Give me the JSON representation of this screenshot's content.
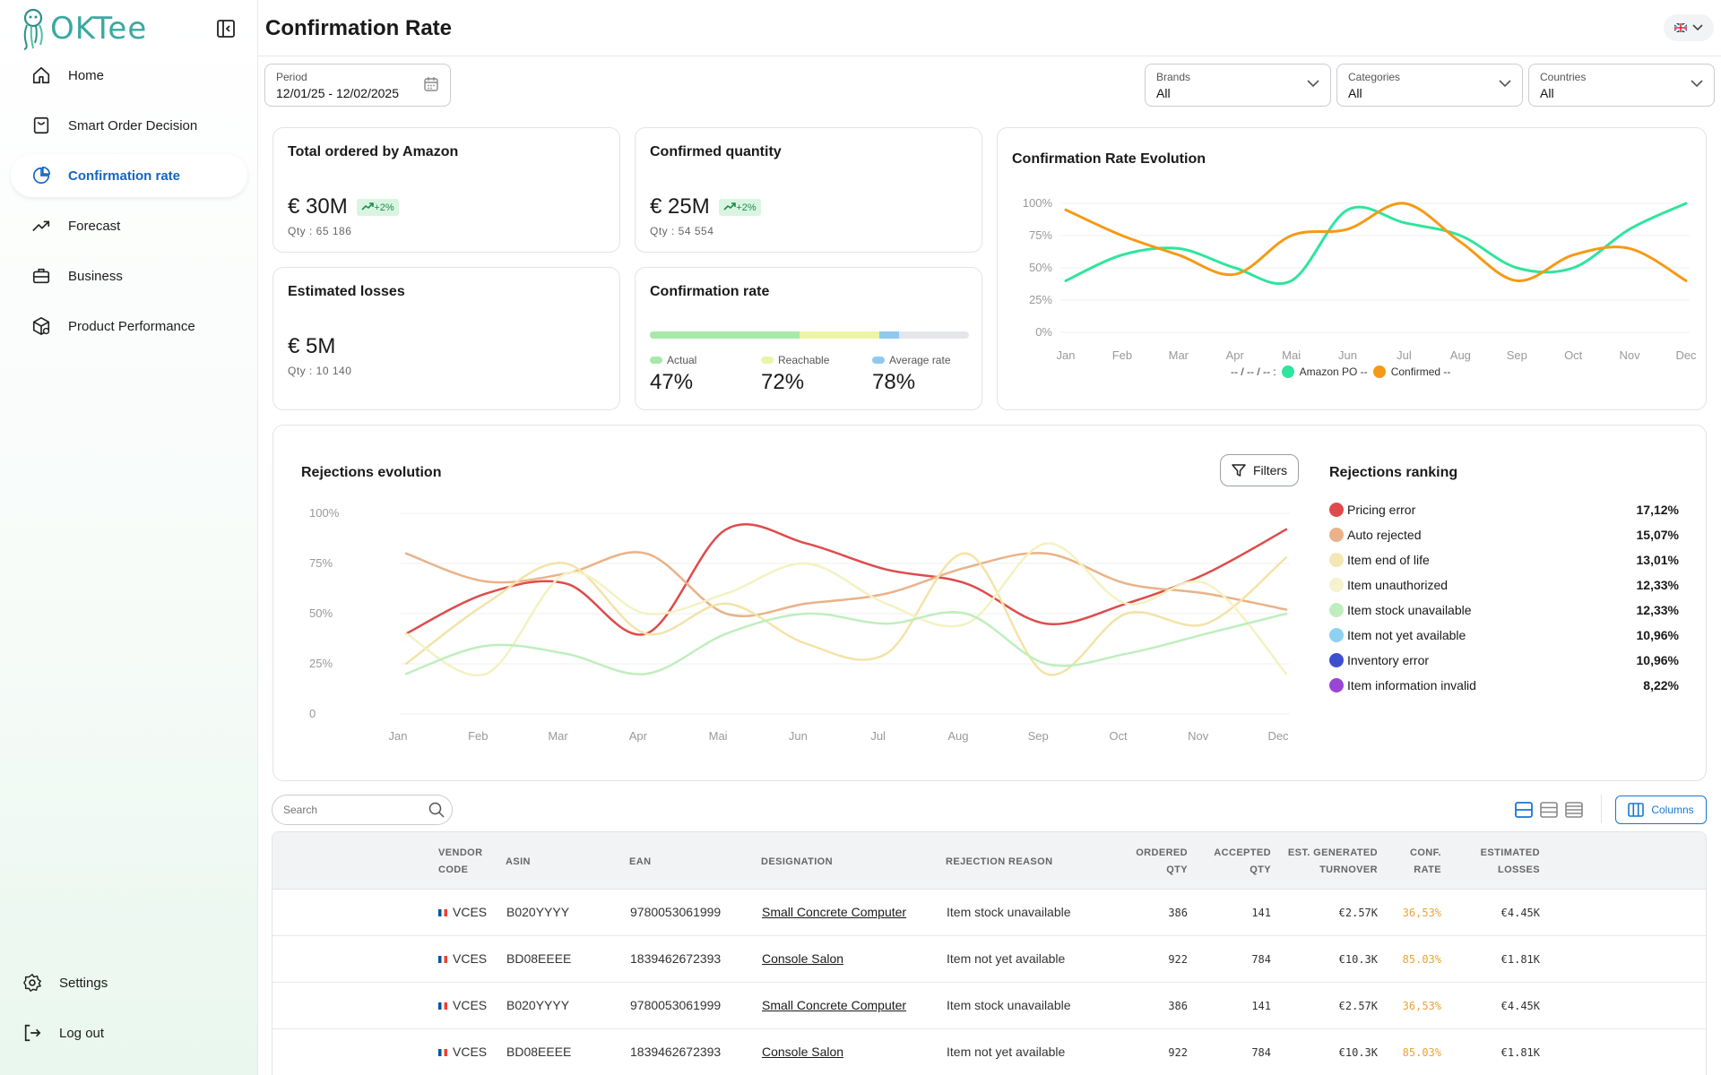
{
  "brand": {
    "name": "OKTee"
  },
  "nav": [
    {
      "label": "Home",
      "icon": "home-icon"
    },
    {
      "label": "Smart Order Decision",
      "icon": "bag-icon"
    },
    {
      "label": "Confirmation rate",
      "icon": "pie-icon"
    },
    {
      "label": "Forecast",
      "icon": "trend-icon"
    },
    {
      "label": "Business",
      "icon": "briefcase-icon"
    },
    {
      "label": "Product Performance",
      "icon": "box-icon"
    }
  ],
  "nav_bottom": [
    {
      "label": "Settings",
      "icon": "gear-icon"
    },
    {
      "label": "Log out",
      "icon": "logout-icon"
    }
  ],
  "page": {
    "title": "Confirmation Rate"
  },
  "filters": {
    "period": {
      "label": "Period",
      "value": "12/01/25 - 12/02/2025"
    },
    "brands": {
      "label": "Brands",
      "value": "All"
    },
    "categories": {
      "label": "Categories",
      "value": "All"
    },
    "countries": {
      "label": "Countries",
      "value": "All"
    }
  },
  "kpis": {
    "total_ordered": {
      "title": "Total ordered by Amazon",
      "value": "€ 30M",
      "badge": "+2%",
      "qty": "Qty : 65 186"
    },
    "confirmed_qty": {
      "title": "Confirmed quantity",
      "value": "€ 25M",
      "badge": "+2%",
      "qty": "Qty : 54 554"
    },
    "estimated_losses": {
      "title": "Estimated losses",
      "value": "€ 5M",
      "qty": "Qty : 10 140"
    },
    "confirmation_rate": {
      "title": "Confirmation rate",
      "actual_label": "Actual",
      "actual": "47%",
      "actual_value": 47,
      "reachable_label": "Reachable",
      "reachable": "72%",
      "reachable_value": 72,
      "average_label": "Average rate",
      "average": "78%",
      "average_value": 78
    }
  },
  "evolution_chart": {
    "title": "Confirmation Rate Evolution",
    "legend_prefix": "-- / -- / -- :",
    "legend_amazon": "Amazon PO --",
    "legend_confirmed": "Confirmed --"
  },
  "rejections_chart": {
    "title": "Rejections evolution",
    "filters_label": "Filters"
  },
  "chart_data": [
    {
      "type": "line",
      "title": "Confirmation Rate Evolution",
      "categories": [
        "Jan",
        "Feb",
        "Mar",
        "Apr",
        "Mai",
        "Jun",
        "Jul",
        "Aug",
        "Sep",
        "Oct",
        "Nov",
        "Dec"
      ],
      "ylim": [
        0,
        100
      ],
      "yticks": [
        "0%",
        "25%",
        "50%",
        "75%",
        "100%"
      ],
      "series": [
        {
          "name": "Amazon PO",
          "color": "#2ee59d",
          "values": [
            40,
            60,
            65,
            50,
            40,
            95,
            85,
            75,
            50,
            50,
            80,
            100
          ]
        },
        {
          "name": "Confirmed",
          "color": "#f59a16",
          "values": [
            95,
            75,
            60,
            45,
            75,
            80,
            100,
            70,
            40,
            60,
            65,
            40
          ]
        }
      ]
    },
    {
      "type": "line",
      "title": "Rejections evolution",
      "categories": [
        "Jan",
        "Feb",
        "Mar",
        "Apr",
        "Mai",
        "Jun",
        "Jul",
        "Aug",
        "Sep",
        "Oct",
        "Nov",
        "Dec"
      ],
      "ylim": [
        0,
        100
      ],
      "yticks": [
        "0",
        "25%",
        "50%",
        "75%",
        "100%"
      ],
      "series": [
        {
          "name": "Pricing error",
          "color": "#df4b4b",
          "values": [
            40,
            60,
            65,
            40,
            92,
            85,
            72,
            65,
            45,
            55,
            70,
            92
          ]
        },
        {
          "name": "Auto rejected",
          "color": "#eab288",
          "values": [
            80,
            66,
            70,
            80,
            50,
            55,
            60,
            73,
            80,
            65,
            60,
            52
          ]
        },
        {
          "name": "Item end of life",
          "color": "#f3e3a8",
          "values": [
            25,
            55,
            75,
            40,
            55,
            35,
            30,
            80,
            20,
            50,
            45,
            78
          ]
        },
        {
          "name": "Item unauthorized",
          "color": "#f3f2c2",
          "values": [
            40,
            20,
            70,
            50,
            60,
            75,
            55,
            45,
            85,
            55,
            65,
            20
          ]
        },
        {
          "name": "Item stock unavailable",
          "color": "#bfeebe",
          "values": [
            20,
            34,
            30,
            20,
            40,
            50,
            45,
            50,
            25,
            30,
            40,
            50
          ]
        }
      ]
    }
  ],
  "ranking": {
    "title": "Rejections ranking",
    "items": [
      {
        "name": "Pricing error",
        "pct": "17,12%",
        "color": "#df4b4b"
      },
      {
        "name": "Auto rejected",
        "pct": "15,07%",
        "color": "#eab288"
      },
      {
        "name": "Item end of life",
        "pct": "13,01%",
        "color": "#f5e7b4"
      },
      {
        "name": "Item unauthorized",
        "pct": "12,33%",
        "color": "#f4f3cd"
      },
      {
        "name": "Item stock unavailable",
        "pct": "12,33%",
        "color": "#bfeebe"
      },
      {
        "name": "Item not yet available",
        "pct": "10,96%",
        "color": "#8fd1f0"
      },
      {
        "name": "Inventory error",
        "pct": "10,96%",
        "color": "#3d4fd1"
      },
      {
        "name": "Item information invalid",
        "pct": "8,22%",
        "color": "#9b45d6"
      }
    ]
  },
  "table": {
    "search_placeholder": "Search",
    "columns_label": "Columns",
    "headers": {
      "vendor_1": "Vendor",
      "vendor_2": "code",
      "asin": "ASIN",
      "ean": "EAN",
      "designation": "Designation",
      "reason": "Rejection reason",
      "ordered_1": "Ordered",
      "ordered_2": "qty",
      "accepted_1": "Accepted",
      "accepted_2": "qty",
      "turnover_1": "Est. generated",
      "turnover_2": "turnover",
      "rate_1": "Conf.",
      "rate_2": "rate",
      "losses_1": "Estimated",
      "losses_2": "losses"
    },
    "rows": [
      {
        "vendor": "VCES",
        "asin": "B020YYYY",
        "ean": "9780053061999",
        "designation": "Small Concrete Computer",
        "reason": "Item stock unavailable",
        "ordered": "386",
        "accepted": "141",
        "turnover": "€2.57K",
        "rate": "36,53%",
        "losses": "€4.45K"
      },
      {
        "vendor": "VCES",
        "asin": "BD08EEEE",
        "ean": "1839462672393",
        "designation": "Console Salon",
        "reason": "Item not yet available",
        "ordered": "922",
        "accepted": "784",
        "turnover": "€10.3K",
        "rate": "85.03%",
        "losses": "€1.81K"
      },
      {
        "vendor": "VCES",
        "asin": "B020YYYY",
        "ean": "9780053061999",
        "designation": "Small Concrete Computer",
        "reason": "Item stock unavailable",
        "ordered": "386",
        "accepted": "141",
        "turnover": "€2.57K",
        "rate": "36,53%",
        "losses": "€4.45K"
      },
      {
        "vendor": "VCES",
        "asin": "BD08EEEE",
        "ean": "1839462672393",
        "designation": "Console Salon",
        "reason": "Item not yet available",
        "ordered": "922",
        "accepted": "784",
        "turnover": "€10.3K",
        "rate": "85.03%",
        "losses": "€1.81K"
      }
    ]
  },
  "colors": {
    "accent": "#1565c0",
    "rate_warning": "#e8a33a",
    "actual": "#a6e9a8",
    "reachable": "#ecf4a6",
    "average": "#8fc9ef"
  }
}
